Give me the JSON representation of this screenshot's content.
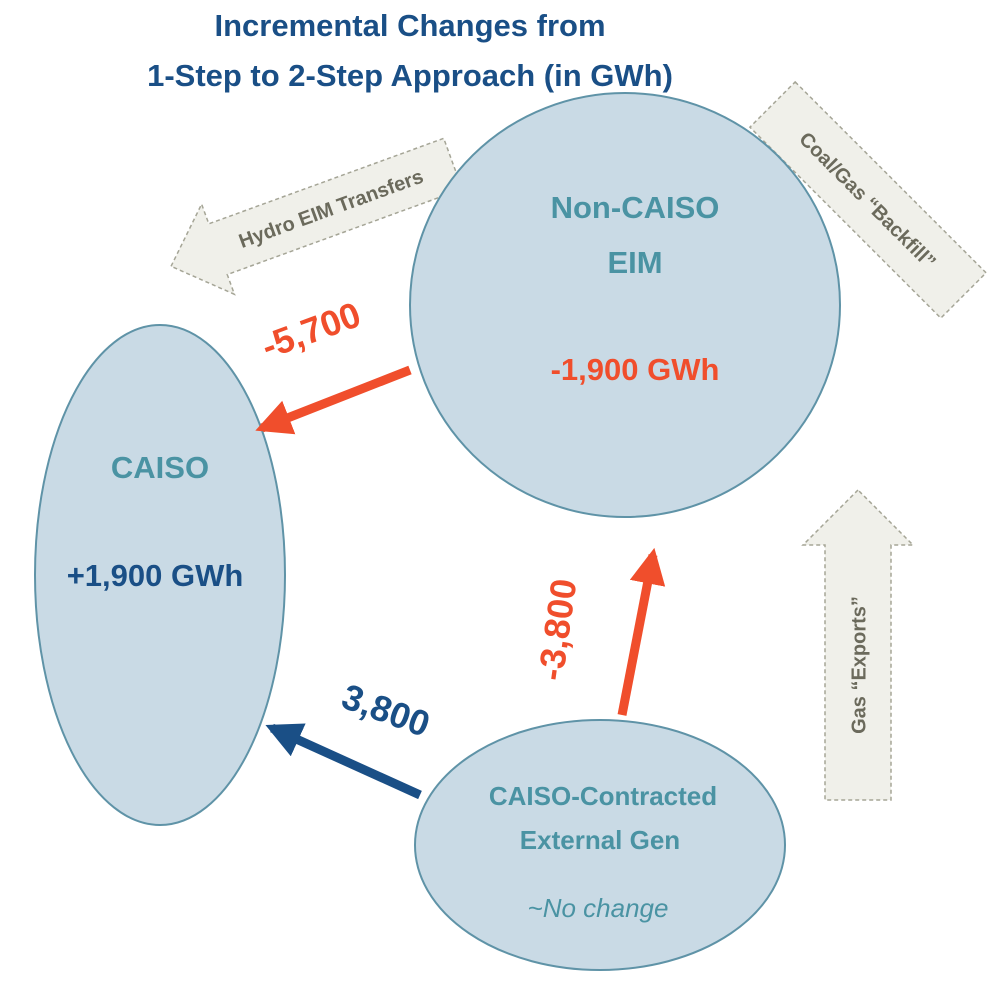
{
  "title": [
    "Incremental Changes from",
    "1-Step to 2-Step Approach (in GWh)"
  ],
  "nodes": [
    {
      "label": [
        "CAISO"
      ],
      "change": "+1,900 GWh"
    },
    {
      "label": [
        "Non-CAISO",
        "EIM"
      ],
      "change": "-1,900 GWh"
    },
    {
      "label": [
        "CAISO-Contracted",
        "External Gen"
      ],
      "change": "~No change"
    }
  ],
  "flows": [
    {
      "label": "-5,700"
    },
    {
      "label": "-3,800"
    },
    {
      "label": "3,800"
    }
  ],
  "notes": [
    "Hydro EIM Transfers",
    "Coal/Gas “Backfill”",
    "Gas “Exports”"
  ]
}
